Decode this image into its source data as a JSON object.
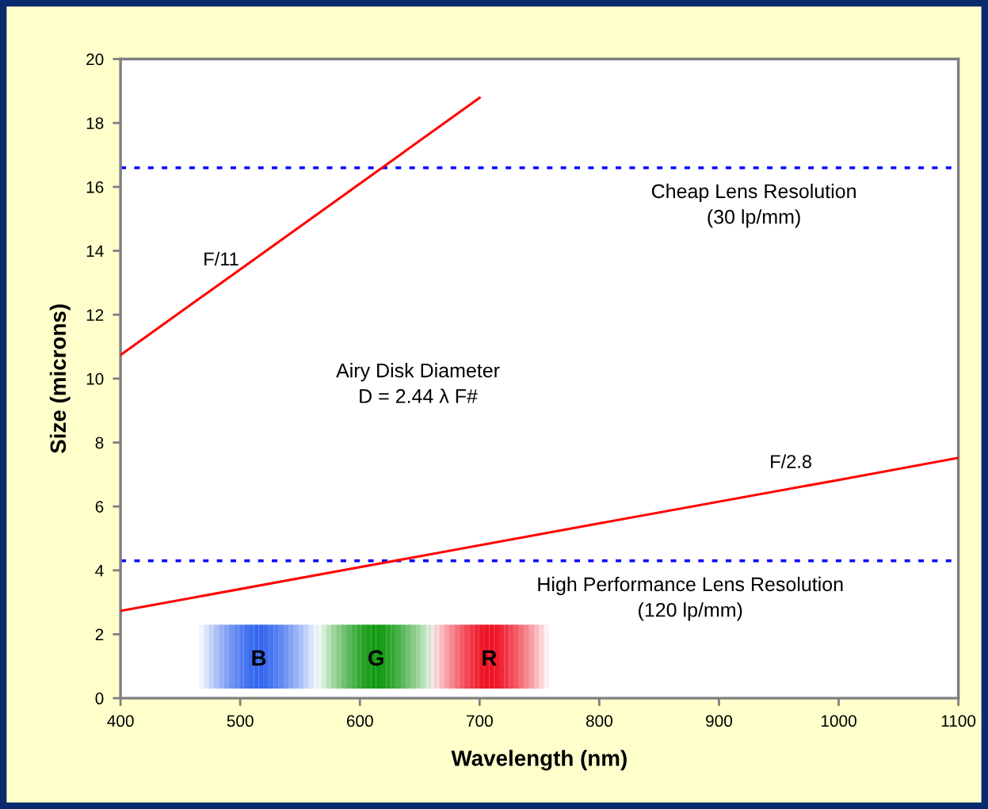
{
  "chart_data": {
    "type": "line",
    "xlabel": "Wavelength (nm)",
    "ylabel": "Size (microns)",
    "xlim": [
      400,
      1100
    ],
    "xticks": [
      400,
      500,
      600,
      700,
      800,
      900,
      1000,
      1100
    ],
    "ylim": [
      0,
      20
    ],
    "yticks": [
      0,
      2,
      4,
      6,
      8,
      10,
      12,
      14,
      16,
      18,
      20
    ],
    "grid": false,
    "legend": false,
    "marker": "none",
    "line_style": "solid",
    "series": [
      {
        "name": "F/11",
        "color": "#ff0000",
        "x": [
          400,
          500,
          600,
          700
        ],
        "values": [
          10.74,
          13.42,
          16.1,
          18.79
        ]
      },
      {
        "name": "F/2.8",
        "color": "#ff0000",
        "x": [
          400,
          600,
          800,
          1000,
          1100
        ],
        "values": [
          2.73,
          4.1,
          5.47,
          6.83,
          7.52
        ]
      }
    ],
    "ref_lines": [
      {
        "axis": "y",
        "value": 16.6,
        "label": "Cheap Lens Resolution\n(30 lp/mm)",
        "color": "#0000ff",
        "line_style": "dotted"
      },
      {
        "axis": "y",
        "value": 4.3,
        "label": "High Performance Lens Resolution\n(120 lp/mm)",
        "color": "#0000ff",
        "line_style": "dotted"
      }
    ],
    "annotations": [
      "Airy Disk Diameter\nD = 2.44 λ F#",
      "B",
      "G",
      "R"
    ]
  }
}
